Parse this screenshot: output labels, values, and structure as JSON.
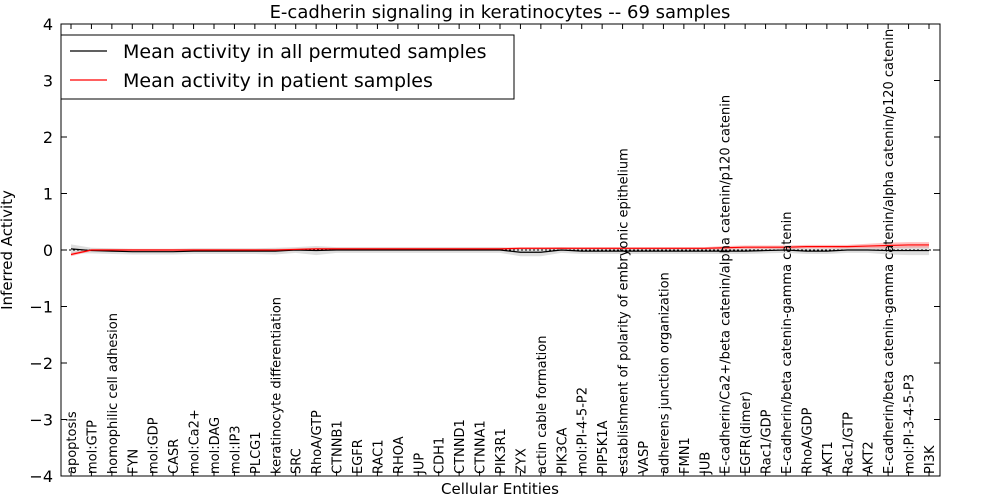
{
  "chart_data": {
    "type": "line",
    "title": "E-cadherin signaling in keratinocytes -- 69 samples",
    "xlabel": "Cellular Entities",
    "ylabel": "Inferred Activity",
    "ylim": [
      -4,
      4
    ],
    "yticks": [
      -4,
      -3,
      -2,
      -1,
      0,
      1,
      2,
      3,
      4
    ],
    "ytick_labels": [
      "−4",
      "−3",
      "−2",
      "−1",
      "0",
      "1",
      "2",
      "3",
      "4"
    ],
    "legend_position": "top-left",
    "categories": [
      "apoptosis",
      "mol:GTP",
      "homophilic cell adhesion",
      "FYN",
      "mol:GDP",
      "CASR",
      "mol:Ca2+",
      "mol:DAG",
      "mol:IP3",
      "PLCG1",
      "keratinocyte differentiation",
      "SRC",
      "RhoA/GTP",
      "CTNNB1",
      "EGFR",
      "RAC1",
      "RHOA",
      "JUP",
      "CDH1",
      "CTNND1",
      "CTNNA1",
      "PIK3R1",
      "ZYX",
      "actin cable formation",
      "PIK3CA",
      "mol:PI-4-5-P2",
      "PIP5K1A",
      "establishment of polarity of embryonic epithelium",
      "VASP",
      "adherens junction organization",
      "FMN1",
      "JUB",
      "E-cadherin/Ca2+/beta catenin/alpha catenin/p120 catenin",
      "EGFR(dimer)",
      "Rac1/GDP",
      "E-cadherin/beta catenin-gamma catenin",
      "RhoA/GDP",
      "AKT1",
      "Rac1/GTP",
      "AKT2",
      "E-cadherin/beta catenin-gamma catenin/alpha catenin/p120 catenin",
      "mol:PI-3-4-5-P3",
      "PI3K"
    ],
    "series": [
      {
        "name": "Mean activity in all permuted samples",
        "color": "#000000",
        "values": [
          0.02,
          -0.01,
          -0.02,
          -0.03,
          -0.03,
          -0.03,
          -0.02,
          -0.02,
          -0.02,
          -0.02,
          -0.02,
          0.0,
          -0.01,
          0.0,
          0.0,
          0.0,
          0.0,
          0.0,
          0.0,
          0.0,
          0.0,
          0.0,
          -0.04,
          -0.04,
          0.0,
          -0.02,
          -0.02,
          -0.02,
          -0.02,
          -0.02,
          -0.02,
          -0.02,
          -0.02,
          -0.02,
          -0.01,
          0.0,
          -0.02,
          -0.02,
          0.0,
          0.0,
          -0.01,
          -0.01,
          -0.01
        ],
        "band": [
          0.08,
          0.05,
          0.05,
          0.05,
          0.05,
          0.05,
          0.05,
          0.05,
          0.05,
          0.05,
          0.06,
          0.05,
          0.08,
          0.05,
          0.05,
          0.05,
          0.05,
          0.05,
          0.05,
          0.05,
          0.05,
          0.05,
          0.07,
          0.07,
          0.05,
          0.05,
          0.05,
          0.05,
          0.05,
          0.05,
          0.05,
          0.05,
          0.05,
          0.05,
          0.05,
          0.05,
          0.05,
          0.05,
          0.05,
          0.05,
          0.07,
          0.08,
          0.08
        ]
      },
      {
        "name": "Mean activity in patient samples",
        "color": "#ff0000",
        "values": [
          -0.08,
          0.0,
          0.0,
          0.0,
          0.0,
          0.0,
          0.0,
          0.0,
          0.0,
          0.0,
          0.0,
          0.01,
          0.02,
          0.02,
          0.02,
          0.02,
          0.02,
          0.02,
          0.02,
          0.02,
          0.02,
          0.02,
          0.03,
          0.03,
          0.03,
          0.03,
          0.03,
          0.03,
          0.03,
          0.03,
          0.03,
          0.03,
          0.04,
          0.05,
          0.05,
          0.05,
          0.06,
          0.06,
          0.06,
          0.07,
          0.08,
          0.09,
          0.09
        ],
        "band": [
          0.03,
          0.02,
          0.02,
          0.02,
          0.02,
          0.02,
          0.02,
          0.02,
          0.02,
          0.02,
          0.02,
          0.02,
          0.02,
          0.02,
          0.02,
          0.02,
          0.02,
          0.02,
          0.02,
          0.02,
          0.02,
          0.02,
          0.02,
          0.02,
          0.02,
          0.02,
          0.02,
          0.02,
          0.02,
          0.02,
          0.02,
          0.02,
          0.03,
          0.03,
          0.03,
          0.03,
          0.03,
          0.03,
          0.03,
          0.04,
          0.05,
          0.05,
          0.05
        ]
      }
    ]
  }
}
